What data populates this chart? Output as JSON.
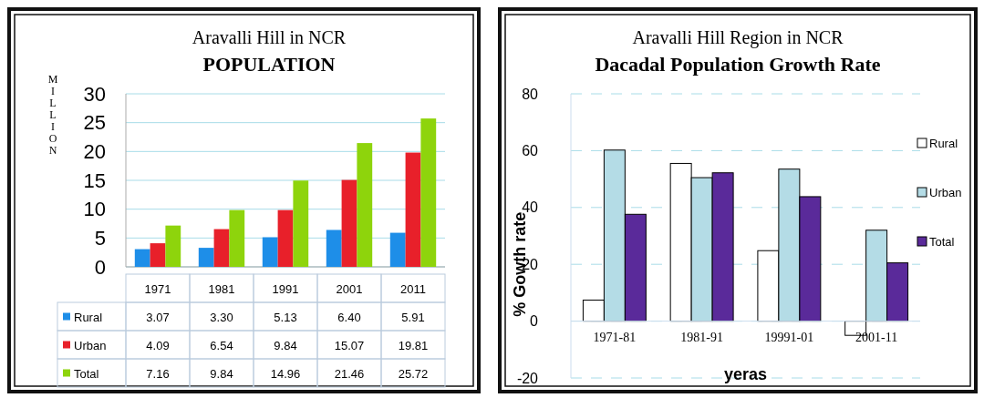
{
  "chart_data": [
    {
      "type": "bar",
      "title": "Aravalli Hill in NCR",
      "subtitle": "POPULATION",
      "ylabel": "MILLION",
      "categories": [
        "1971",
        "1981",
        "1991",
        "2001",
        "2011"
      ],
      "series": [
        {
          "name": "Rural",
          "color": "#1e8ee8",
          "values": [
            3.07,
            3.3,
            5.13,
            6.4,
            5.91
          ],
          "value_labels": [
            "3.07",
            "3.30",
            "5.13",
            "6.40",
            "5.91"
          ]
        },
        {
          "name": "Urban",
          "color": "#e8202a",
          "values": [
            4.09,
            6.54,
            9.84,
            15.07,
            19.81
          ],
          "value_labels": [
            "4.09",
            "6.54",
            "9.84",
            "15.07",
            "19.81"
          ]
        },
        {
          "name": "Total",
          "color": "#8ed40c",
          "values": [
            7.16,
            9.84,
            14.96,
            21.46,
            25.72
          ],
          "value_labels": [
            "7.16",
            "9.84",
            "14.96",
            "21.46",
            "25.72"
          ]
        }
      ],
      "ylim": [
        0,
        30
      ],
      "yticks": [
        0,
        5,
        10,
        15,
        20,
        25,
        30
      ],
      "grid": "y",
      "legend": "bottom left"
    },
    {
      "type": "bar",
      "title": "Aravalli Hill Region in NCR",
      "subtitle": "Dacadal Population Growth Rate",
      "xlabel": "yeras",
      "ylabel": "% Gowth rate",
      "categories": [
        "1971-81",
        "1981-91",
        "19991-01",
        "2001-11"
      ],
      "series": [
        {
          "name": "Rural",
          "color": "#ffffff",
          "values": [
            7.4,
            55.5,
            24.8,
            -5
          ]
        },
        {
          "name": "Urban",
          "color": "#b4dce6",
          "values": [
            60.2,
            50.5,
            53.5,
            32
          ]
        },
        {
          "name": "Total",
          "color": "#5a2a9a",
          "values": [
            37.6,
            52.2,
            43.8,
            20.5
          ]
        }
      ],
      "ylim": [
        -20,
        80
      ],
      "yticks": [
        -20,
        0,
        20,
        40,
        60,
        80
      ],
      "grid": "y",
      "legend": "right"
    }
  ]
}
